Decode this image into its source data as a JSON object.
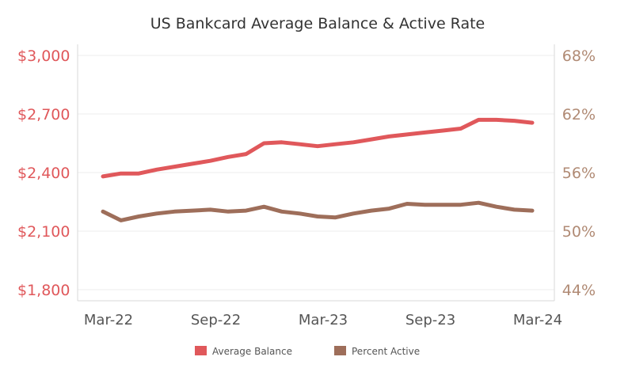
{
  "chart_data": {
    "type": "line",
    "title": "US Bankcard Average Balance & Active Rate",
    "x_ticks": [
      "Mar-22",
      "Sep-22",
      "Mar-23",
      "Sep-23",
      "Mar-24"
    ],
    "y_left": {
      "ticks": [
        "$3,000",
        "$2,700",
        "$2,400",
        "$2,100",
        "$1,800"
      ],
      "tick_values": [
        3000,
        2700,
        2400,
        2100,
        1800
      ],
      "range": [
        1800,
        3000
      ]
    },
    "y_right": {
      "ticks": [
        "68%",
        "62%",
        "56%",
        "50%",
        "44%"
      ],
      "tick_values": [
        68,
        62,
        56,
        50,
        44
      ],
      "range": [
        44,
        68
      ]
    },
    "x": [
      "Mar-22",
      "Apr-22",
      "May-22",
      "Jun-22",
      "Jul-22",
      "Aug-22",
      "Sep-22",
      "Oct-22",
      "Nov-22",
      "Dec-22",
      "Jan-23",
      "Feb-23",
      "Mar-23",
      "Apr-23",
      "May-23",
      "Jun-23",
      "Jul-23",
      "Aug-23",
      "Sep-23",
      "Oct-23",
      "Nov-23",
      "Dec-23",
      "Jan-24",
      "Feb-24",
      "Mar-24"
    ],
    "series": [
      {
        "name": "Average Balance",
        "axis": "left",
        "color": "#e0585b",
        "values": [
          2380,
          2395,
          2395,
          2415,
          2430,
          2445,
          2460,
          2480,
          2495,
          2550,
          2555,
          2545,
          2535,
          2545,
          2555,
          2570,
          2585,
          2595,
          2605,
          2615,
          2625,
          2670,
          2670,
          2665,
          2655
        ]
      },
      {
        "name": "Percent Active",
        "axis": "right",
        "color": "#9e6e5a",
        "values": [
          52.0,
          51.1,
          51.5,
          51.8,
          52.0,
          52.1,
          52.2,
          52.0,
          52.1,
          52.5,
          52.0,
          51.8,
          51.5,
          51.4,
          51.8,
          52.1,
          52.3,
          52.8,
          52.7,
          52.7,
          52.7,
          52.9,
          52.5,
          52.2,
          52.1
        ]
      }
    ],
    "legend": {
      "placement": "bottom",
      "items": [
        {
          "label": "Average Balance",
          "color": "#e0585b"
        },
        {
          "label": "Percent Active",
          "color": "#9e6e5a"
        }
      ]
    },
    "colors": {
      "left_axis_text": "#e0585b",
      "right_axis_text": "#b08a74",
      "gridline": "#ececec",
      "axis_line": "#d8d8d8"
    }
  }
}
